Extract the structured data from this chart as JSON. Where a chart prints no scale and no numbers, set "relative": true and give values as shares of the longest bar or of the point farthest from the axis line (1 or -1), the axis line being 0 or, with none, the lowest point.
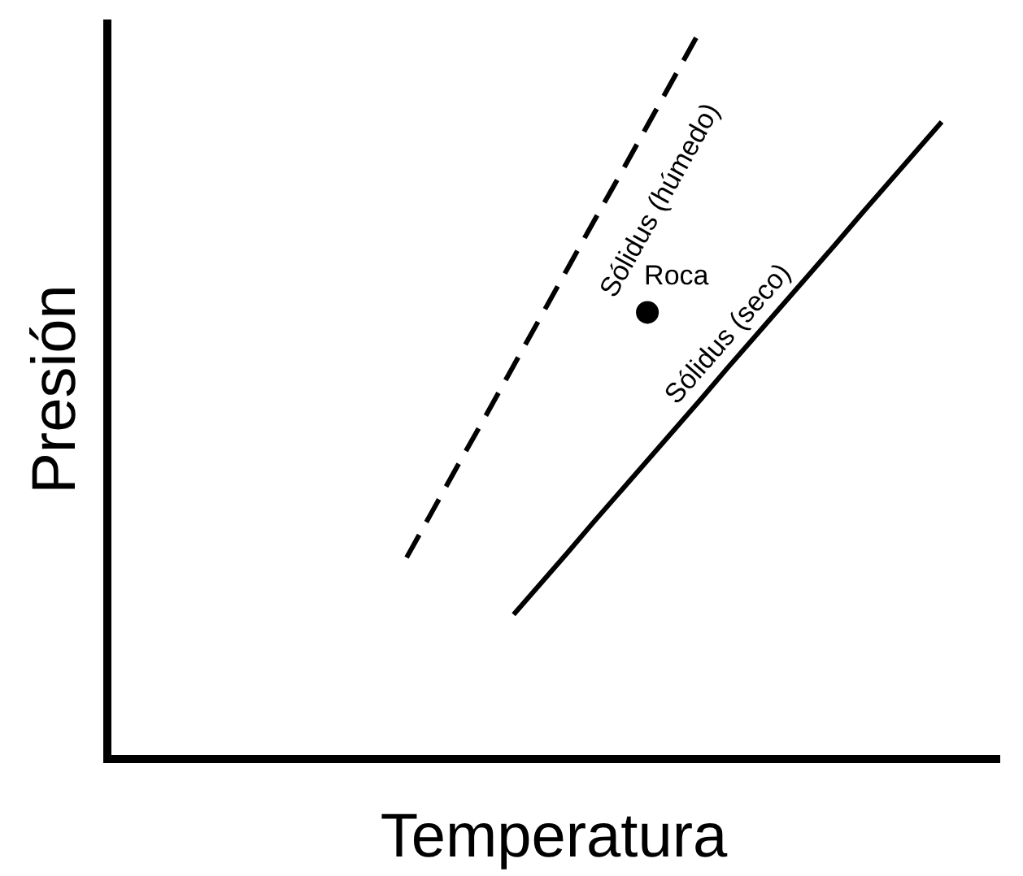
{
  "chart_data": {
    "type": "line",
    "xlabel": "Temperatura",
    "ylabel": "Presión",
    "relative": true,
    "categories": [
      null,
      null,
      null,
      null,
      null,
      null,
      null,
      null,
      null,
      null,
      null,
      null,
      null,
      null,
      null,
      null,
      null,
      null,
      null,
      null,
      null
    ],
    "series": [
      {
        "name": "Sólidus (húmedo)",
        "color": "#000000",
        "line_style": "dashed",
        "values": [
          0.276,
          0.342,
          0.408,
          0.473,
          0.539,
          0.605,
          0.671,
          0.737,
          0.802,
          0.868,
          0.934,
          1,
          null,
          null,
          null,
          null,
          null,
          null,
          null,
          null,
          null
        ]
      },
      {
        "name": "Sólidus (seco)",
        "color": "#000000",
        "line_style": "solid",
        "values": [
          null,
          null,
          null,
          null,
          0.198,
          0.24,
          0.282,
          0.325,
          0.367,
          0.409,
          0.451,
          0.493,
          0.536,
          0.578,
          0.62,
          0.662,
          0.704,
          0.747,
          0.789,
          0.831,
          0.873
        ]
      },
      {
        "name": "Roca",
        "marker": "circle",
        "line_style": "none",
        "color": "#000000",
        "values": [
          null,
          null,
          null,
          null,
          null,
          null,
          null,
          null,
          null,
          0.612,
          null,
          null,
          null,
          null,
          null,
          null,
          null,
          null,
          null,
          null,
          null
        ]
      }
    ]
  }
}
